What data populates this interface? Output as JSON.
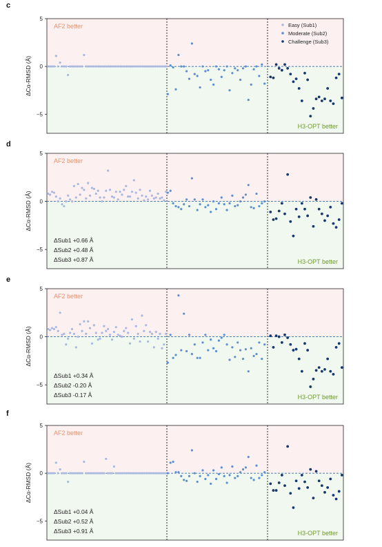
{
  "colors": {
    "easy": "#a9b8df",
    "moderate": "#5b8fd1",
    "challenge": "#17386e",
    "af2_region": "#fdf0f0",
    "h3_region": "#f1f8ef",
    "af2_text": "#e8916a",
    "h3_text": "#6f9a2b",
    "zero_line": "#2f6db0"
  },
  "legend": {
    "placement": "top-right",
    "items": [
      {
        "label": "Easy (Sub1)",
        "key": "easy"
      },
      {
        "label": "Moderate (Sub2)",
        "key": "moderate"
      },
      {
        "label": "Challenge (Sub3)",
        "key": "challenge"
      }
    ]
  },
  "chart_data": [
    {
      "panel": "c",
      "type": "scatter",
      "ylabel": "ΔCα-RMSD (Å)",
      "ylim": [
        -7,
        5
      ],
      "yticks": [
        5,
        0,
        -5
      ],
      "top_label": "AF2 better",
      "bottom_label": "H3-OPT better",
      "stats": [],
      "series": [
        {
          "key": "easy",
          "values": [
            0,
            0,
            0,
            0,
            1.1,
            0,
            0.4,
            0,
            0,
            0,
            -0.9,
            0,
            0,
            0,
            0,
            0,
            0,
            0,
            1.2,
            0,
            0,
            0,
            0,
            0,
            0,
            0,
            0,
            0,
            0,
            0,
            0,
            0,
            0,
            0,
            0,
            0,
            0,
            0,
            0,
            0,
            0,
            0,
            0,
            0,
            0,
            0,
            0,
            0,
            0,
            0,
            0,
            0,
            0,
            0,
            0,
            0,
            0,
            0,
            0,
            0
          ]
        },
        {
          "key": "moderate",
          "values": [
            -2.9,
            0.1,
            -0.1,
            -2.4,
            1.2,
            0,
            0,
            -0.5,
            -1.3,
            2.4,
            -0.8,
            -1.0,
            -2.2,
            0,
            -0.5,
            -0.4,
            -1.4,
            -1.9,
            0,
            -0.3,
            -1.1,
            -0.4,
            0,
            -2.5,
            -0.7,
            -0.2,
            -0.4,
            -1.4,
            -0.2,
            0,
            -3.5,
            -1.9,
            -0.3,
            0,
            -1.0,
            0.2,
            -1.8
          ]
        },
        {
          "key": "challenge",
          "values": [
            -1.1,
            -1.2,
            0.2,
            -0.2,
            -0.4,
            0.2,
            -0.2,
            -0.8,
            -1.6,
            -1.3,
            -2.3,
            -3.6,
            -0.7,
            -1.4,
            -5.2,
            -4.4,
            -3.4,
            -3.2,
            -3.6,
            -3.4,
            -2.3,
            -3.6,
            -3.9,
            -1.2,
            -0.8,
            -3.3
          ]
        }
      ]
    },
    {
      "panel": "d",
      "type": "scatter",
      "ylabel": "ΔCα-RMSD (Å)",
      "ylim": [
        -7,
        5
      ],
      "yticks": [
        5,
        0,
        -5
      ],
      "top_label": "AF2 better",
      "bottom_label": "H3-OPT better",
      "stats": [
        "ΔSub1 +0.66 Å",
        "ΔSub2 +0.48 Å",
        "ΔSub3 +0.87 Å"
      ],
      "series": [
        {
          "key": "easy",
          "values": [
            0.8,
            0.7,
            1.0,
            0.9,
            0.5,
            0,
            0.3,
            -0.3,
            -0.5,
            0,
            0.6,
            0.2,
            0,
            1.6,
            0.4,
            1.8,
            0.7,
            1.4,
            1.2,
            0.3,
            1.9,
            0.6,
            1.4,
            1.3,
            0.8,
            1.1,
            0.4,
            0,
            0.4,
            1.1,
            3.2,
            1.2,
            0.5,
            0.4,
            1.0,
            0.2,
            1.0,
            0.7,
            1.2,
            1.6,
            0.5,
            0.5,
            1.0,
            2.2,
            0.9,
            0.3,
            1.2,
            0.6,
            0.1,
            0.5,
            0.2,
            1.1,
            0.6,
            0.3,
            0.4,
            0.8,
            0.3,
            0.4,
            0.1,
            1.0
          ]
        },
        {
          "key": "moderate",
          "values": [
            0.9,
            1.1,
            -0.2,
            -0.5,
            -0.6,
            -0.8,
            -0.3,
            0.2,
            -0.5,
            2.4,
            0.2,
            -0.9,
            -0.3,
            0.2,
            -0.6,
            -0.4,
            -1.1,
            0,
            -0.8,
            -0.2,
            0.4,
            -0.3,
            -0.9,
            -0.2,
            0.6,
            -0.5,
            -0.4,
            0,
            0.4,
            0.7,
            1.7,
            -0.6,
            -0.7,
            0.8,
            -0.5,
            -0.2,
            0
          ]
        },
        {
          "key": "challenge",
          "values": [
            -1.1,
            -1.9,
            -1.8,
            -1.0,
            -0.2,
            -1.3,
            2.8,
            -2.1,
            -3.6,
            -0.8,
            -1.6,
            -0.2,
            -0.8,
            -1.5,
            0.4,
            -2.6,
            0.2,
            -0.8,
            -1.3,
            -2.0,
            -1.5,
            -0.6,
            -2.3,
            -2.7,
            -1.9,
            -0.2
          ]
        }
      ]
    },
    {
      "panel": "e",
      "type": "scatter",
      "ylabel": "ΔCα-RMSD (Å)",
      "ylim": [
        -7,
        5
      ],
      "yticks": [
        5,
        0,
        -5
      ],
      "top_label": "AF2 better",
      "bottom_label": "H3-OPT better",
      "stats": [
        "ΔSub1 +0.34 Å",
        "ΔSub2 -0.20 Å",
        "ΔSub3 -0.17 Å"
      ],
      "series": [
        {
          "key": "easy",
          "values": [
            0.8,
            0.7,
            0.9,
            0.8,
            1.0,
            0.6,
            2.5,
            0.2,
            0.3,
            -0.8,
            -0.2,
            0.4,
            0.8,
            0.3,
            -1.1,
            0,
            1.3,
            0.6,
            1.6,
            0.3,
            1.6,
            0.9,
            -0.7,
            1.2,
            0.4,
            -0.3,
            -0.2,
            0.4,
            1.1,
            0.6,
            0.8,
            0.2,
            -0.3,
            0.5,
            1.0,
            0.2,
            0.1,
            0,
            0.6,
            0.9,
            0.4,
            -0.7,
            1.8,
            -0.2,
            1.1,
            0.3,
            -0.5,
            2.2,
            0.6,
            1.2,
            -0.5,
            0.5,
            0.3,
            -1.1,
            0.5,
            -0.2,
            0.3,
            -1.2,
            -0.8,
            0.3
          ]
        },
        {
          "key": "moderate",
          "values": [
            -2.7,
            0.2,
            -2.2,
            -1.9,
            4.3,
            -1.4,
            2.4,
            -1.5,
            0.2,
            -1.8,
            -0.8,
            -2.2,
            -2.2,
            -0.6,
            0.2,
            -1.4,
            -0.3,
            -1.2,
            -1.5,
            -0.4,
            -0.1,
            0.2,
            -0.8,
            -2.4,
            -1.1,
            -2.1,
            -0.6,
            -1.4,
            -2.3,
            -1.3,
            -3.6,
            -1.2,
            -2.0,
            -1.8,
            -0.6,
            -2.3,
            -0.8
          ]
        },
        {
          "key": "challenge",
          "values": [
            0.1,
            -1.1,
            0.1,
            0,
            -0.6,
            0.2,
            -0.1,
            -0.8,
            -1.4,
            -1.3,
            -2.3,
            -3.6,
            -0.7,
            -1.4,
            -5.2,
            -4.4,
            -3.5,
            -3.2,
            -3.6,
            -3.4,
            -2.3,
            -3.6,
            -3.9,
            -1.1,
            -0.7,
            -3.2
          ]
        }
      ]
    },
    {
      "panel": "f",
      "type": "scatter",
      "ylabel": "ΔCα-RMSD (Å)",
      "ylim": [
        -7,
        5
      ],
      "yticks": [
        5,
        0,
        -5
      ],
      "top_label": "AF2 better",
      "bottom_label": "H3-OPT better",
      "stats": [
        "ΔSub1 +0.04 Å",
        "ΔSub2 +0.52 Å",
        "ΔSub3 +0.91 Å"
      ],
      "series": [
        {
          "key": "easy",
          "values": [
            0,
            0,
            0,
            0,
            1.1,
            0,
            0.4,
            0,
            0,
            0,
            -0.9,
            0,
            0,
            0,
            0,
            0,
            0,
            0,
            1.2,
            0,
            0,
            0,
            0,
            0,
            0,
            0,
            0,
            0,
            0,
            1.5,
            0,
            0,
            0,
            0.7,
            0,
            0,
            0,
            0,
            0,
            0,
            0,
            0,
            0,
            0,
            0,
            0,
            0,
            0,
            0,
            0,
            0,
            0,
            0,
            0,
            0,
            0,
            0,
            0,
            0,
            0
          ]
        },
        {
          "key": "moderate",
          "values": [
            0,
            1.1,
            1.2,
            0.1,
            0.1,
            -0.3,
            -0.7,
            -0.8,
            -0.3,
            2.4,
            0,
            -0.9,
            -0.3,
            0.3,
            -0.6,
            -0.2,
            -1.1,
            0.3,
            -0.6,
            -0.1,
            0.6,
            -0.3,
            -1.0,
            -0.2,
            0.7,
            -0.5,
            -0.3,
            0.1,
            0.4,
            0.6,
            1.7,
            -0.5,
            -0.7,
            0.8,
            -0.5,
            -0.2,
            0.1
          ]
        },
        {
          "key": "challenge",
          "values": [
            -1.1,
            -1.8,
            -1.8,
            -1.0,
            -0.2,
            -1.3,
            2.8,
            -2.1,
            -3.6,
            -0.8,
            -1.6,
            -0.2,
            -0.9,
            -1.5,
            0.4,
            -2.6,
            0.2,
            -0.8,
            -1.3,
            -2.0,
            -1.5,
            -0.6,
            -2.3,
            -2.7,
            -1.9,
            -0.2
          ]
        }
      ]
    }
  ]
}
